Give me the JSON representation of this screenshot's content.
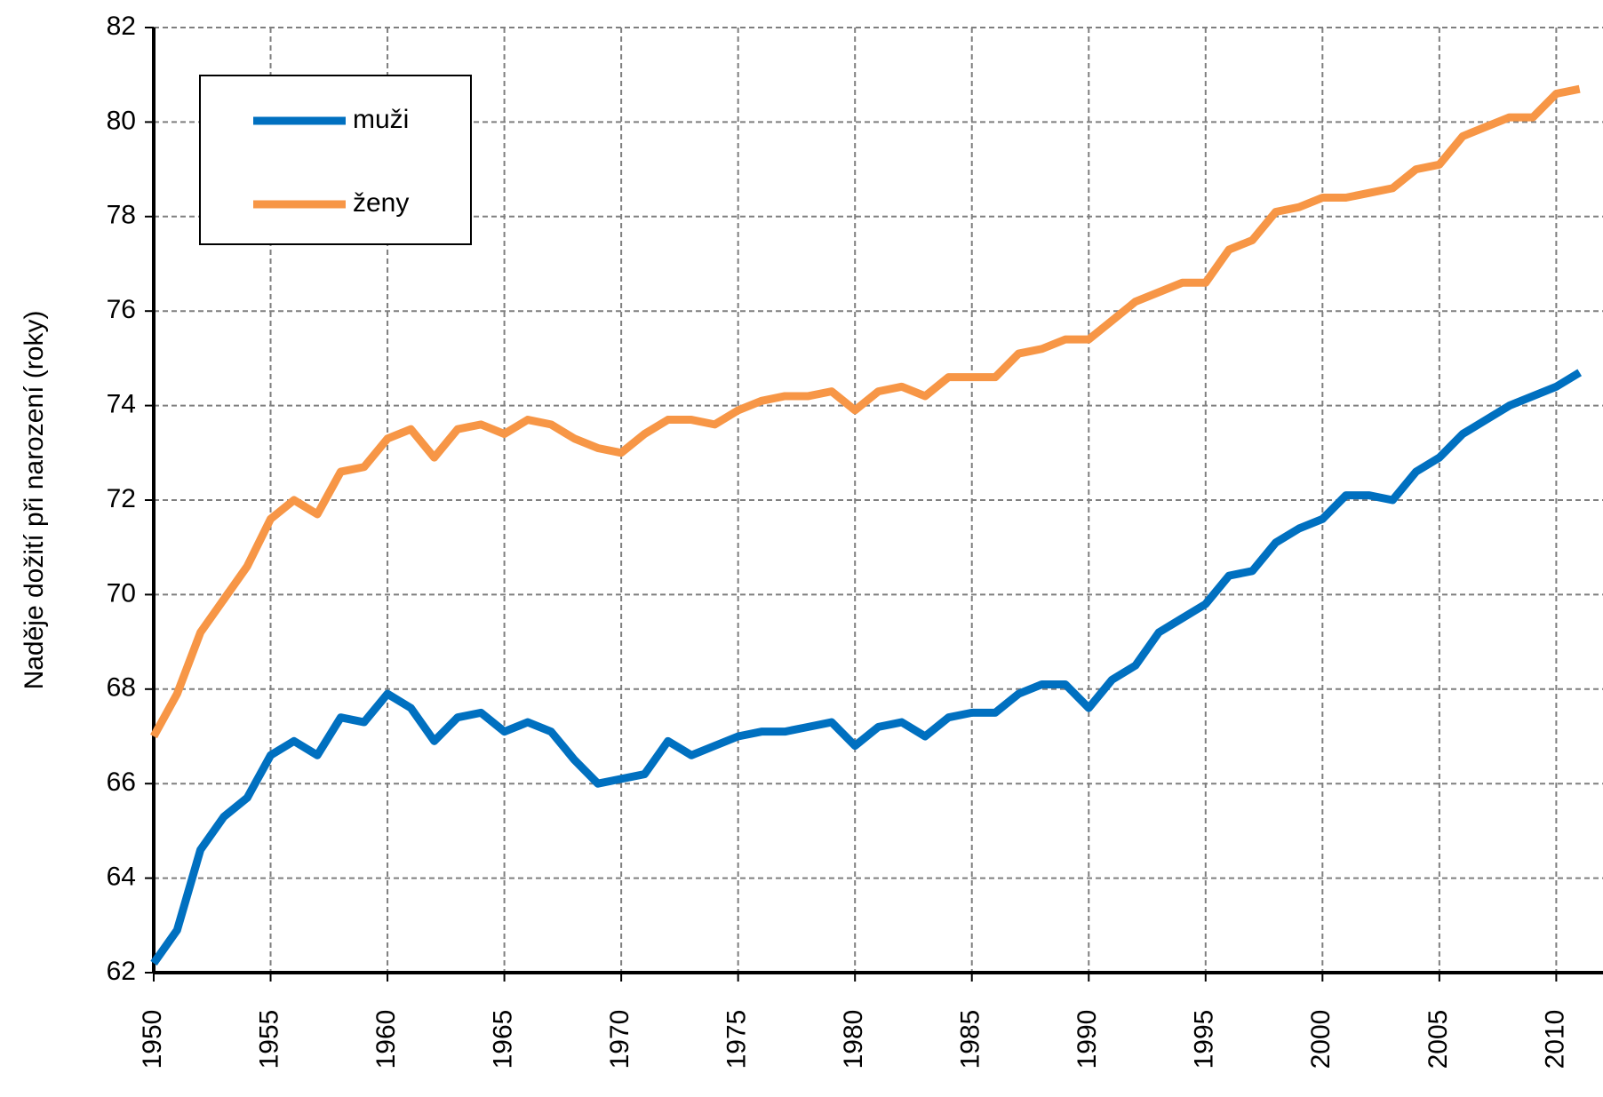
{
  "chart_data": {
    "type": "line",
    "y_label": "Naděje dožití při narození (roky)",
    "x": [
      1950,
      1951,
      1952,
      1953,
      1954,
      1955,
      1956,
      1957,
      1958,
      1959,
      1960,
      1961,
      1962,
      1963,
      1964,
      1965,
      1966,
      1967,
      1968,
      1969,
      1970,
      1971,
      1972,
      1973,
      1974,
      1975,
      1976,
      1977,
      1978,
      1979,
      1980,
      1981,
      1982,
      1983,
      1984,
      1985,
      1986,
      1987,
      1988,
      1989,
      1990,
      1991,
      1992,
      1993,
      1994,
      1995,
      1996,
      1997,
      1998,
      1999,
      2000,
      2001,
      2002,
      2003,
      2004,
      2005,
      2006,
      2007,
      2008,
      2009,
      2010,
      2011
    ],
    "series": [
      {
        "name": "muži",
        "color": "#0070c0",
        "values": [
          62.2,
          62.9,
          64.6,
          65.3,
          65.7,
          66.6,
          66.9,
          66.6,
          67.4,
          67.3,
          67.9,
          67.6,
          66.9,
          67.4,
          67.5,
          67.1,
          67.3,
          67.1,
          66.5,
          66.0,
          66.1,
          66.2,
          66.9,
          66.6,
          66.8,
          67.0,
          67.1,
          67.1,
          67.2,
          67.3,
          66.8,
          67.2,
          67.3,
          67.0,
          67.4,
          67.5,
          67.5,
          67.9,
          68.1,
          68.1,
          67.6,
          68.2,
          68.5,
          69.2,
          69.5,
          69.8,
          70.4,
          70.5,
          71.1,
          71.4,
          71.6,
          72.1,
          72.1,
          72.0,
          72.6,
          72.9,
          73.4,
          73.7,
          74.0,
          74.2,
          74.4,
          74.7
        ]
      },
      {
        "name": "ženy",
        "color": "#f79646",
        "values": [
          67.0,
          67.9,
          69.2,
          69.9,
          70.6,
          71.6,
          72.0,
          71.7,
          72.6,
          72.7,
          73.3,
          73.5,
          72.9,
          73.5,
          73.6,
          73.4,
          73.7,
          73.6,
          73.3,
          73.1,
          73.0,
          73.4,
          73.7,
          73.7,
          73.6,
          73.9,
          74.1,
          74.2,
          74.2,
          74.3,
          73.9,
          74.3,
          74.4,
          74.2,
          74.6,
          74.6,
          74.6,
          75.1,
          75.2,
          75.4,
          75.4,
          75.8,
          76.2,
          76.4,
          76.6,
          76.6,
          77.3,
          77.5,
          78.1,
          78.2,
          78.4,
          78.4,
          78.5,
          78.6,
          79.0,
          79.1,
          79.7,
          79.9,
          80.1,
          80.1,
          80.6,
          80.7
        ]
      }
    ],
    "xlim": [
      1950,
      2012
    ],
    "xticks": [
      1950,
      1955,
      1960,
      1965,
      1970,
      1975,
      1980,
      1985,
      1990,
      1995,
      2000,
      2005,
      2010
    ],
    "ylim": [
      62,
      82
    ],
    "yticks": [
      62,
      64,
      66,
      68,
      70,
      72,
      74,
      76,
      78,
      80,
      82
    ],
    "grid": true,
    "legend": "upper-left"
  }
}
